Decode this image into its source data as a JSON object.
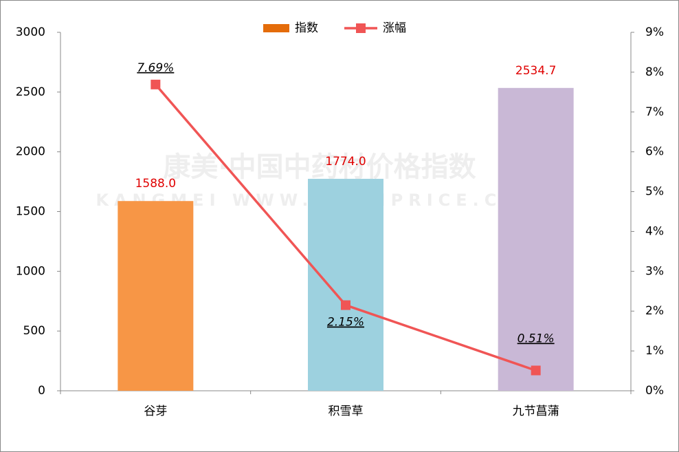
{
  "chart_data": {
    "type": "bar_line",
    "categories": [
      "谷芽",
      "积雪草",
      "九节菖蒲"
    ],
    "series": [
      {
        "name": "指数",
        "type": "bar",
        "color": "#e46c0a",
        "bar_colors": [
          "#f79646",
          "#9dd1df",
          "#c9b8d6"
        ],
        "values": [
          1588.0,
          1774.0,
          2534.7
        ],
        "value_labels": [
          "1588.0",
          "1774.0",
          "2534.7"
        ]
      },
      {
        "name": "涨幅",
        "type": "line",
        "axis": "y2",
        "color": "#f05555",
        "values": [
          7.69,
          2.15,
          0.51
        ],
        "value_labels": [
          "7.69%",
          "2.15%",
          "0.51%"
        ]
      }
    ],
    "ylim": [
      0,
      3000
    ],
    "yticks": [
      0,
      500,
      1000,
      1500,
      2000,
      2500,
      3000
    ],
    "y2lim": [
      0,
      9
    ],
    "y2ticks": [
      {
        "value": 0,
        "label": "0%"
      },
      {
        "value": 1,
        "label": "1%"
      },
      {
        "value": 2,
        "label": "2%"
      },
      {
        "value": 3,
        "label": "3%"
      },
      {
        "value": 4,
        "label": "4%"
      },
      {
        "value": 5,
        "label": "5%"
      },
      {
        "value": 6,
        "label": "6%"
      },
      {
        "value": 7,
        "label": "7%"
      },
      {
        "value": 8,
        "label": "8%"
      },
      {
        "value": 9,
        "label": "9%"
      }
    ],
    "watermark": [
      "康美·中国中药材价格指数",
      "KANGMEI WWW.CNKMPRICE.COM"
    ]
  }
}
